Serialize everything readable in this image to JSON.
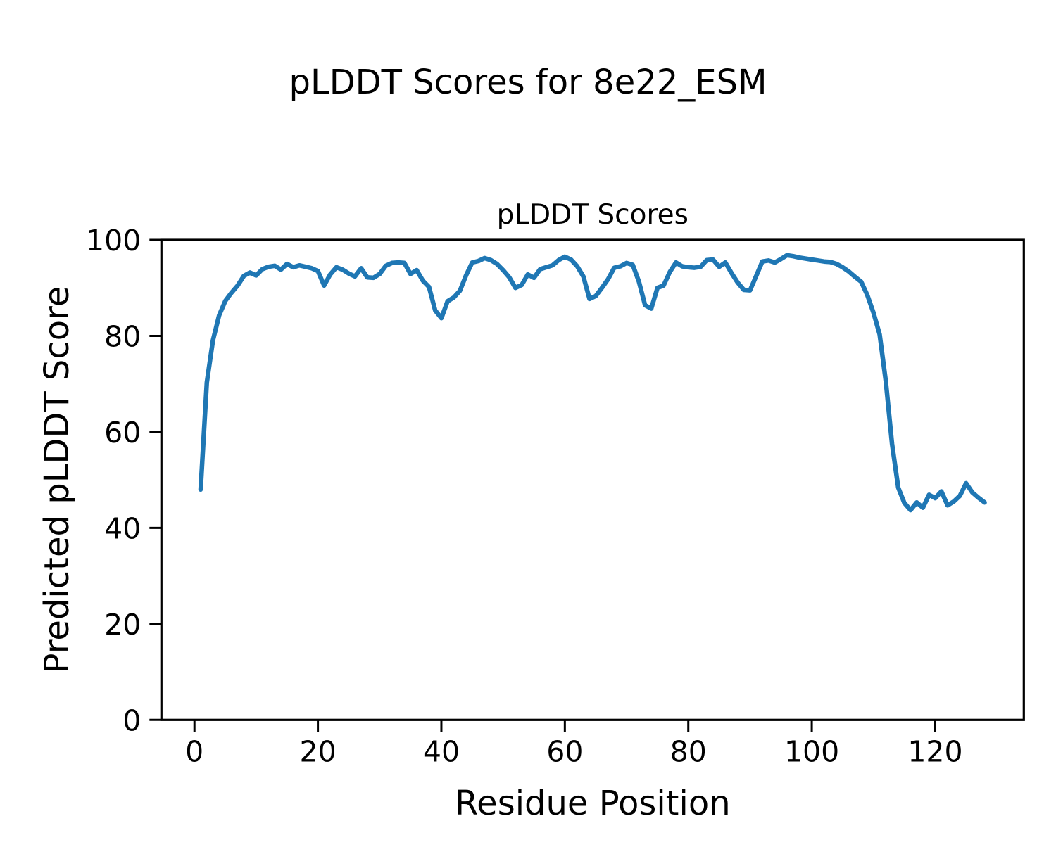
{
  "figure": {
    "suptitle": "pLDDT Scores for 8e22_ESM"
  },
  "chart_data": {
    "type": "line",
    "title": "pLDDT Scores",
    "xlabel": "Residue Position",
    "ylabel": "Predicted pLDDT Score",
    "x_ticks": [
      0,
      20,
      40,
      60,
      80,
      100,
      120
    ],
    "y_ticks": [
      0,
      20,
      40,
      60,
      80,
      100
    ],
    "xlim": [
      -5.35,
      134.35
    ],
    "ylim": [
      0,
      100
    ],
    "grid": false,
    "legend_position": "none",
    "line_color": "#1f77b4",
    "spine_color": "#000000",
    "series": [
      {
        "name": "pLDDT",
        "x": [
          1,
          2,
          3,
          4,
          5,
          6,
          7,
          8,
          9,
          10,
          11,
          12,
          13,
          14,
          15,
          16,
          17,
          18,
          19,
          20,
          21,
          22,
          23,
          24,
          25,
          26,
          27,
          28,
          29,
          30,
          31,
          32,
          33,
          34,
          35,
          36,
          37,
          38,
          39,
          40,
          41,
          42,
          43,
          44,
          45,
          46,
          47,
          48,
          49,
          50,
          51,
          52,
          53,
          54,
          55,
          56,
          57,
          58,
          59,
          60,
          61,
          62,
          63,
          64,
          65,
          66,
          67,
          68,
          69,
          70,
          71,
          72,
          73,
          74,
          75,
          76,
          77,
          78,
          79,
          80,
          81,
          82,
          83,
          84,
          85,
          86,
          87,
          88,
          89,
          90,
          91,
          92,
          93,
          94,
          95,
          96,
          97,
          98,
          99,
          100,
          101,
          102,
          103,
          104,
          105,
          106,
          107,
          108,
          109,
          110,
          111,
          112,
          113,
          114,
          115,
          116,
          117,
          118,
          119,
          120,
          121,
          122,
          123,
          124,
          125,
          126,
          127,
          128
        ],
        "values": [
          48.0,
          70.3,
          79.1,
          84.3,
          87.3,
          89.0,
          90.5,
          92.5,
          93.2,
          92.6,
          93.9,
          94.4,
          94.6,
          93.8,
          95.0,
          94.3,
          94.7,
          94.4,
          94.1,
          93.5,
          90.5,
          92.8,
          94.3,
          93.8,
          93.0,
          92.4,
          94.1,
          92.2,
          92.1,
          92.9,
          94.6,
          95.2,
          95.3,
          95.2,
          92.9,
          93.7,
          91.5,
          90.2,
          85.3,
          83.7,
          87.2,
          88.0,
          89.4,
          92.6,
          95.3,
          95.6,
          96.2,
          95.8,
          95.0,
          93.7,
          92.2,
          90.0,
          90.6,
          92.8,
          92.1,
          93.9,
          94.3,
          94.7,
          95.8,
          96.5,
          95.9,
          94.5,
          92.4,
          87.7,
          88.3,
          90.0,
          91.8,
          94.2,
          94.5,
          95.2,
          94.8,
          91.3,
          86.4,
          85.7,
          90.0,
          90.5,
          93.3,
          95.3,
          94.5,
          94.3,
          94.2,
          94.4,
          95.8,
          95.9,
          94.4,
          95.3,
          93.1,
          91.1,
          89.6,
          89.5,
          92.5,
          95.5,
          95.7,
          95.3,
          96.0,
          96.8,
          96.6,
          96.3,
          96.1,
          95.9,
          95.7,
          95.5,
          95.4,
          95.0,
          94.3,
          93.4,
          92.3,
          91.3,
          88.5,
          84.8,
          80.3,
          70.5,
          57.5,
          48.4,
          45.2,
          43.7,
          45.3,
          44.2,
          46.9,
          46.2,
          47.6,
          44.7,
          45.5,
          46.7,
          49.3,
          47.4,
          46.3,
          45.3
        ]
      }
    ]
  }
}
